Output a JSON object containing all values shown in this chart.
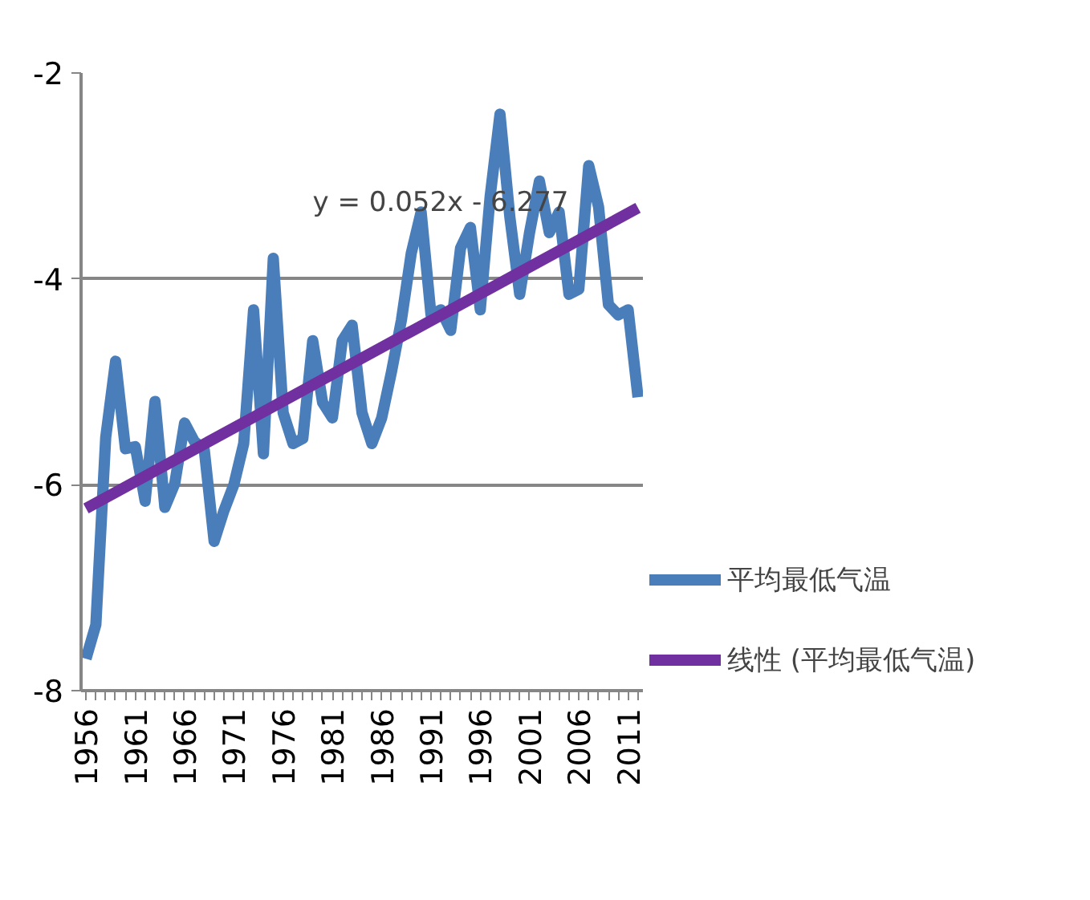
{
  "chart_data": {
    "type": "line",
    "x": [
      1956,
      1957,
      1958,
      1959,
      1960,
      1961,
      1962,
      1963,
      1964,
      1965,
      1966,
      1967,
      1968,
      1969,
      1970,
      1971,
      1972,
      1973,
      1974,
      1975,
      1976,
      1977,
      1978,
      1979,
      1980,
      1981,
      1982,
      1983,
      1984,
      1985,
      1986,
      1987,
      1988,
      1989,
      1990,
      1991,
      1992,
      1993,
      1994,
      1995,
      1996,
      1997,
      1998,
      1999,
      2000,
      2001,
      2002,
      2003,
      2004,
      2005,
      2006,
      2007,
      2008,
      2009,
      2010,
      2011,
      2012
    ],
    "series": [
      {
        "name": "平均最低气温",
        "color": "#4a7ebb",
        "values": [
          -7.69,
          -7.36,
          -5.54,
          -4.8,
          -5.65,
          -5.63,
          -6.16,
          -5.19,
          -6.22,
          -5.99,
          -5.4,
          -5.58,
          -5.66,
          -6.55,
          -6.25,
          -6.0,
          -5.6,
          -4.3,
          -5.7,
          -3.8,
          -5.3,
          -5.6,
          -5.55,
          -4.6,
          -5.2,
          -5.35,
          -4.6,
          -4.45,
          -5.3,
          -5.6,
          -5.35,
          -4.9,
          -4.4,
          -3.75,
          -3.35,
          -4.35,
          -4.3,
          -4.5,
          -3.7,
          -3.5,
          -4.3,
          -3.2,
          -2.4,
          -3.4,
          -4.15,
          -3.55,
          -3.05,
          -3.55,
          -3.35,
          -4.15,
          -4.1,
          -2.9,
          -3.3,
          -4.25,
          -4.35,
          -4.3,
          -5.15
        ]
      },
      {
        "name": "线性 (平均最低气温)",
        "type": "line",
        "color": "#7030a0",
        "x": [
          1956,
          2012
        ],
        "values": [
          -6.23,
          -3.31
        ]
      }
    ],
    "annotations": [
      "y = 0.052x - 6.277"
    ],
    "xlim": [
      1955.5,
      2012.5
    ],
    "xticks": [
      1956,
      1961,
      1966,
      1971,
      1976,
      1981,
      1986,
      1991,
      1996,
      2001,
      2006,
      2011
    ],
    "ylim": [
      -8,
      -2
    ],
    "yticks": [
      -8,
      -6,
      -4,
      -2
    ],
    "grid": "y",
    "legend": "right",
    "marker": "none",
    "line_style": "solid"
  }
}
